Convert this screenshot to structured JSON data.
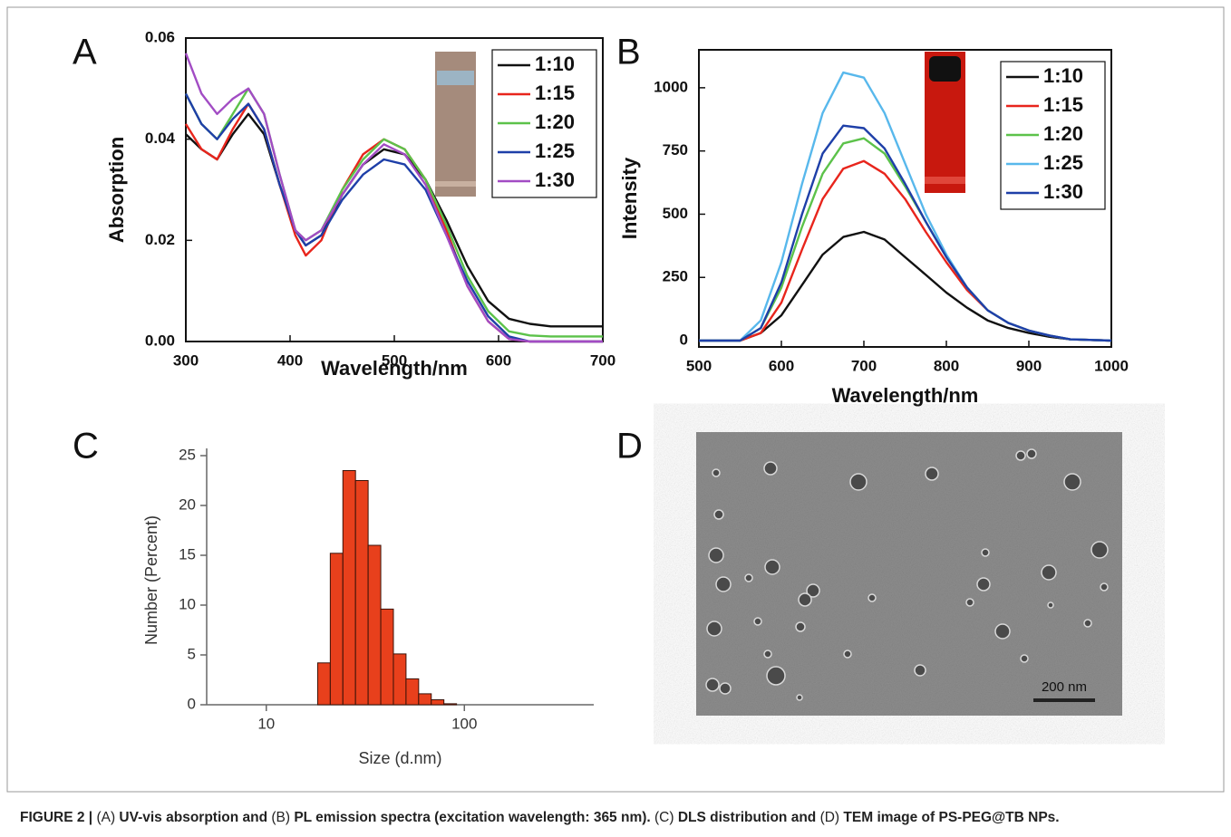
{
  "chart_data": [
    {
      "type": "line",
      "panel": "A",
      "x_label": "Wavelength/nm",
      "y_label": "Absorption",
      "x": [
        300,
        315,
        330,
        345,
        360,
        375,
        390,
        405,
        415,
        430,
        450,
        470,
        490,
        510,
        530,
        550,
        570,
        590,
        610,
        630,
        650,
        675,
        700
      ],
      "series": [
        {
          "name": "1:10",
          "color": "#111111",
          "values": [
            0.041,
            0.038,
            0.036,
            0.041,
            0.045,
            0.041,
            0.031,
            0.022,
            0.019,
            0.021,
            0.029,
            0.035,
            0.038,
            0.037,
            0.032,
            0.024,
            0.015,
            0.008,
            0.0045,
            0.0035,
            0.003,
            0.003,
            0.003
          ]
        },
        {
          "name": "1:15",
          "color": "#e8251c",
          "values": [
            0.043,
            0.038,
            0.036,
            0.042,
            0.047,
            0.042,
            0.031,
            0.021,
            0.017,
            0.02,
            0.03,
            0.037,
            0.04,
            0.038,
            0.032,
            0.022,
            0.011,
            0.004,
            0.0005,
            0,
            0,
            0,
            0
          ]
        },
        {
          "name": "1:20",
          "color": "#5cc24a",
          "values": [
            0.049,
            0.043,
            0.04,
            0.045,
            0.05,
            0.045,
            0.033,
            0.022,
            0.02,
            0.022,
            0.03,
            0.036,
            0.04,
            0.038,
            0.032,
            0.023,
            0.013,
            0.006,
            0.002,
            0.0012,
            0.001,
            0.001,
            0.001
          ]
        },
        {
          "name": "1:25",
          "color": "#1e3fa8",
          "values": [
            0.049,
            0.043,
            0.04,
            0.044,
            0.047,
            0.042,
            0.031,
            0.022,
            0.019,
            0.021,
            0.028,
            0.033,
            0.036,
            0.035,
            0.03,
            0.021,
            0.012,
            0.005,
            0.001,
            0,
            0,
            0,
            0
          ]
        },
        {
          "name": "1:30",
          "color": "#a24cc4",
          "values": [
            0.057,
            0.049,
            0.045,
            0.048,
            0.05,
            0.045,
            0.033,
            0.022,
            0.02,
            0.022,
            0.029,
            0.035,
            0.039,
            0.037,
            0.031,
            0.021,
            0.011,
            0.004,
            0.0005,
            0,
            0,
            0,
            0
          ]
        }
      ],
      "xlim": [
        300,
        700
      ],
      "xticks": [
        300,
        400,
        500,
        600,
        700
      ],
      "ylim": [
        0,
        0.06
      ],
      "yticks": [
        {
          "value": 0,
          "label": "0.00"
        },
        {
          "value": 0.02,
          "label": "0.02"
        },
        {
          "value": 0.04,
          "label": "0.04"
        },
        {
          "value": 0.06,
          "label": "0.06"
        }
      ],
      "legend": "upper right"
    },
    {
      "type": "line",
      "panel": "B",
      "x_label": "Wavelength/nm",
      "y_label": "Intensity",
      "x": [
        500,
        550,
        575,
        600,
        625,
        650,
        675,
        700,
        725,
        750,
        775,
        800,
        825,
        850,
        875,
        900,
        925,
        950,
        1000
      ],
      "series": [
        {
          "name": "1:10",
          "color": "#111111",
          "values": [
            0,
            0,
            30,
            100,
            220,
            340,
            410,
            430,
            400,
            330,
            260,
            190,
            130,
            80,
            50,
            30,
            15,
            5,
            0
          ]
        },
        {
          "name": "1:15",
          "color": "#e8251c",
          "values": [
            0,
            0,
            30,
            150,
            360,
            560,
            680,
            710,
            660,
            560,
            430,
            310,
            200,
            120,
            70,
            40,
            20,
            5,
            0
          ]
        },
        {
          "name": "1:20",
          "color": "#5cc24a",
          "values": [
            0,
            0,
            50,
            210,
            450,
            660,
            780,
            800,
            740,
            610,
            470,
            330,
            210,
            120,
            70,
            40,
            20,
            5,
            0
          ]
        },
        {
          "name": "1:25",
          "color": "#58b8ec",
          "values": [
            0,
            0,
            80,
            310,
            620,
            900,
            1060,
            1040,
            900,
            700,
            500,
            340,
            210,
            120,
            70,
            40,
            20,
            5,
            0
          ]
        },
        {
          "name": "1:30",
          "color": "#1e3fa8",
          "values": [
            0,
            0,
            50,
            230,
            500,
            740,
            850,
            840,
            760,
            620,
            470,
            330,
            210,
            120,
            70,
            40,
            20,
            5,
            0
          ]
        }
      ],
      "xlim": [
        500,
        1000
      ],
      "xticks": [
        500,
        600,
        700,
        800,
        900,
        1000
      ],
      "ylim": [
        -25,
        1150
      ],
      "yticks": [
        0,
        250,
        500,
        750,
        1000
      ],
      "legend": "upper right"
    },
    {
      "type": "histogram",
      "panel": "C",
      "x_label": "Size (d.nm)",
      "y_label": "Number (Percent)",
      "bins": [
        18.17,
        21.04,
        24.36,
        28.21,
        32.67,
        37.84,
        43.82,
        50.75,
        58.77,
        68.06,
        78.82,
        91.28
      ],
      "values": [
        4.2,
        15.2,
        23.5,
        22.5,
        16.0,
        9.6,
        5.1,
        2.6,
        1.1,
        0.5,
        0.1
      ],
      "color": "#e8401c",
      "xscale": "log",
      "xlim": [
        5,
        450
      ],
      "xticks": [
        10,
        100
      ],
      "ylim": [
        0,
        25
      ],
      "yticks": [
        0,
        5,
        10,
        15,
        20,
        25
      ]
    }
  ],
  "image": {
    "panel": "D",
    "scale_bar": "200 nm"
  },
  "caption": [
    "FIGURE 2 |",
    " (A)",
    " UV-vis absorption and ",
    "(B)",
    " PL emission spectra (excitation wavelength: 365 nm). ",
    "(C)",
    " DLS distribution and ",
    "(D)",
    " TEM image of PS-PEG@TB NPs."
  ]
}
